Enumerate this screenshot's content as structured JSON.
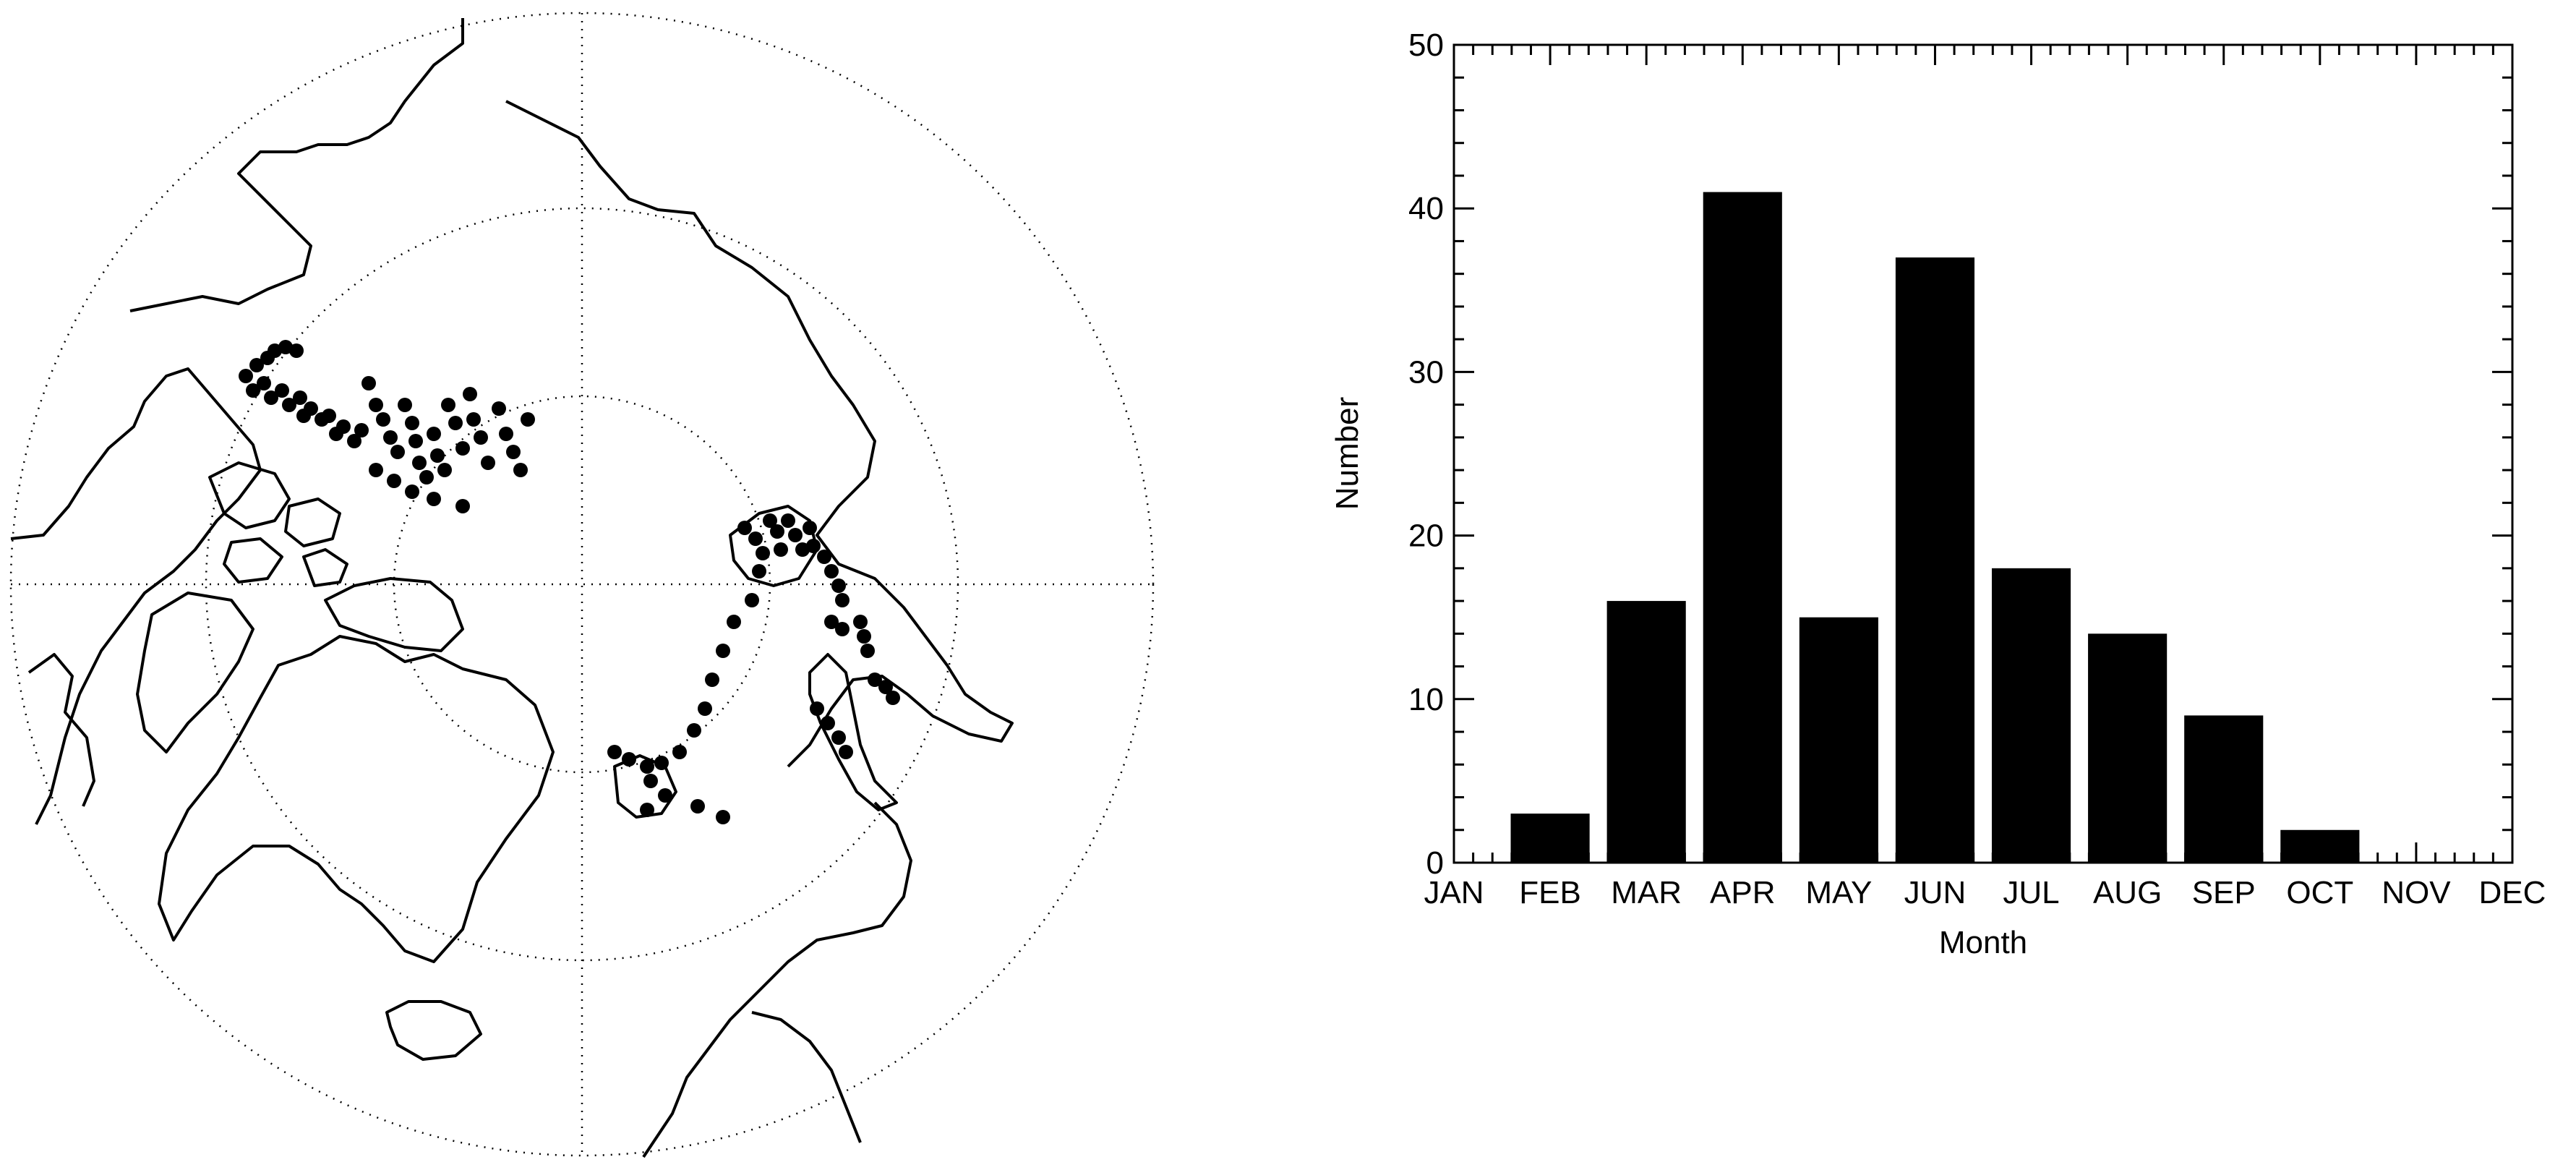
{
  "map": {
    "projection": "north polar stereographic",
    "graticule": "dotted",
    "point_color": "#000000",
    "land_outline_color": "#000000"
  },
  "chart_data": {
    "type": "bar",
    "title": "",
    "xlabel": "Month",
    "ylabel": "Number",
    "categories": [
      "JAN",
      "FEB",
      "MAR",
      "APR",
      "MAY",
      "JUN",
      "JUL",
      "AUG",
      "SEP",
      "OCT",
      "NOV",
      "DEC"
    ],
    "values": [
      0,
      3,
      16,
      41,
      15,
      37,
      18,
      14,
      9,
      2,
      0,
      0
    ],
    "ylim": [
      0,
      50
    ],
    "yticks": [
      "0",
      "10",
      "20",
      "30",
      "40",
      "50"
    ],
    "bar_color": "#000000",
    "grid": false,
    "legend": "none"
  }
}
